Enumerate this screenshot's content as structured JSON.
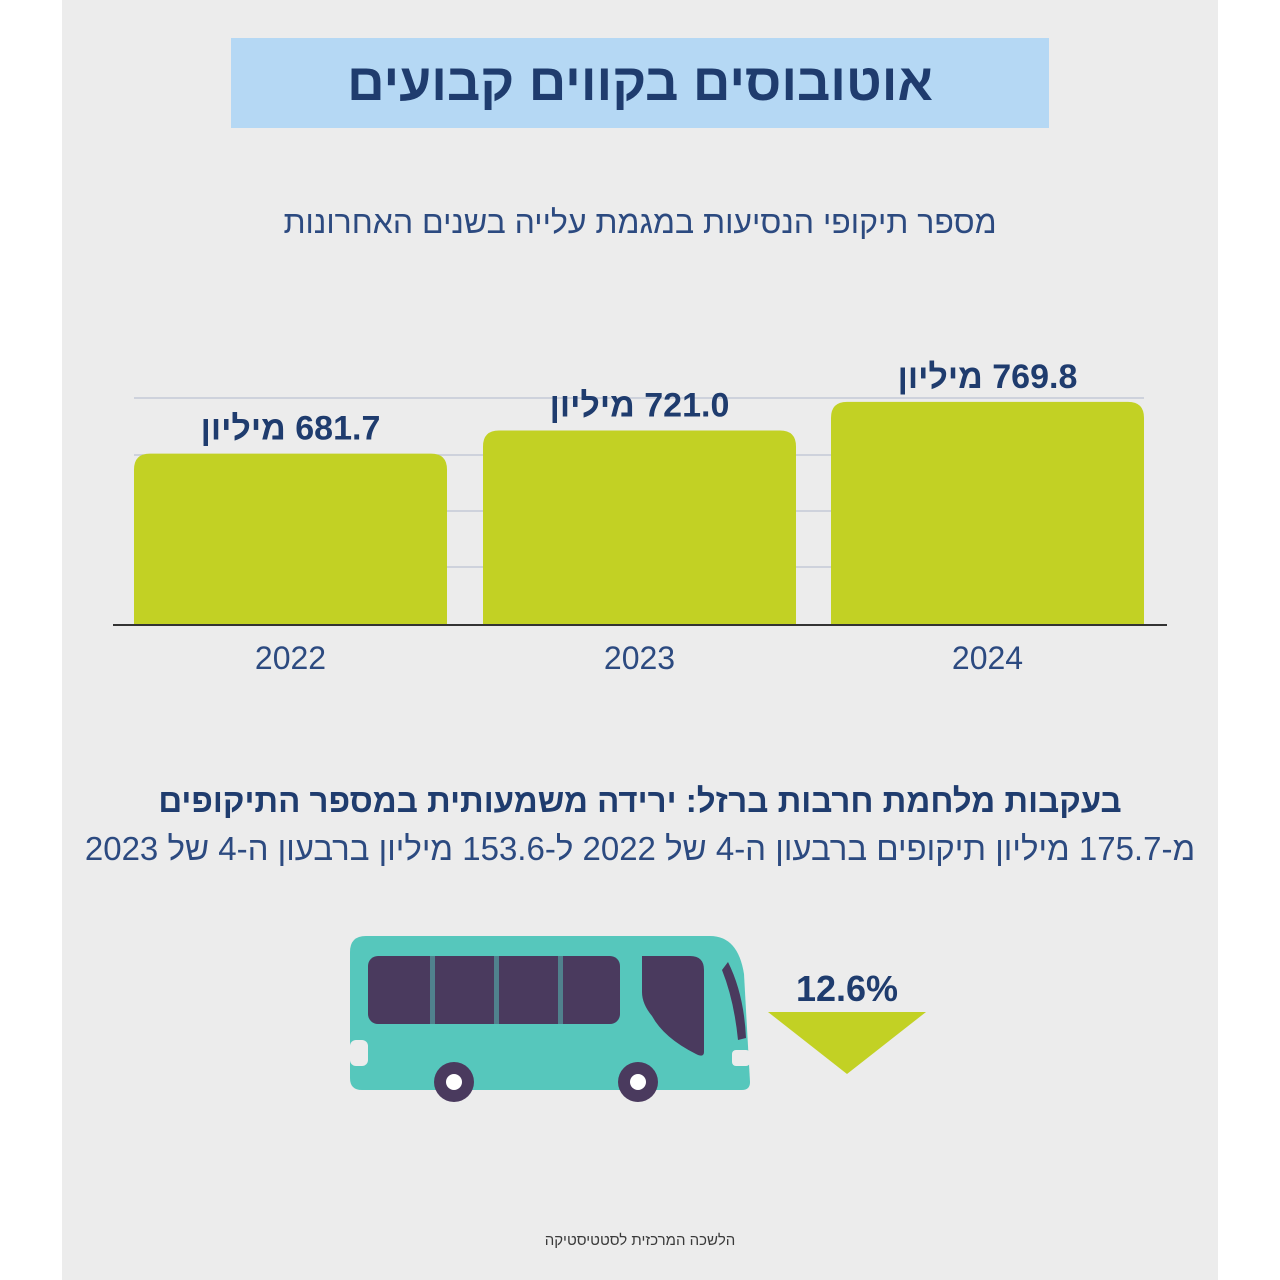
{
  "title": "אוטובוסים בקווים קבועים",
  "chart_data": {
    "type": "bar",
    "title": "מספר תיקופי הנסיעות במגמת עלייה בשנים האחרונות",
    "categories": [
      "2022",
      "2023",
      "2024"
    ],
    "values": [
      681.7,
      721.0,
      769.8
    ],
    "value_labels": [
      "681.7 מיליון",
      "721.0 מיליון",
      "769.8 מיליון"
    ],
    "unit": "מיליון",
    "xlabel": "",
    "ylabel": "",
    "grid": true,
    "bar_color": "#c2d124"
  },
  "headline": "בעקבות מלחמת חרבות ברזל: ירידה משמעותית במספר התיקופים",
  "detail": "מ-175.7 מיליון תיקופים ברבעון ה-4 של 2022 ל-153.6 מיליון ברבעון ה-4 של 2023",
  "change": {
    "value": "12.6%",
    "direction": "down",
    "icon": "down-triangle-icon",
    "color": "#c2d124"
  },
  "illustration": {
    "icon": "bus-icon",
    "body_color": "#56c7bc",
    "window_color": "#4a3a5e"
  },
  "source": "הלשכה המרכזית לסטטיסטיקה",
  "colors": {
    "title_bg": "#b5d8f4",
    "text_dark": "#1f3c6e",
    "background": "#ececec"
  }
}
